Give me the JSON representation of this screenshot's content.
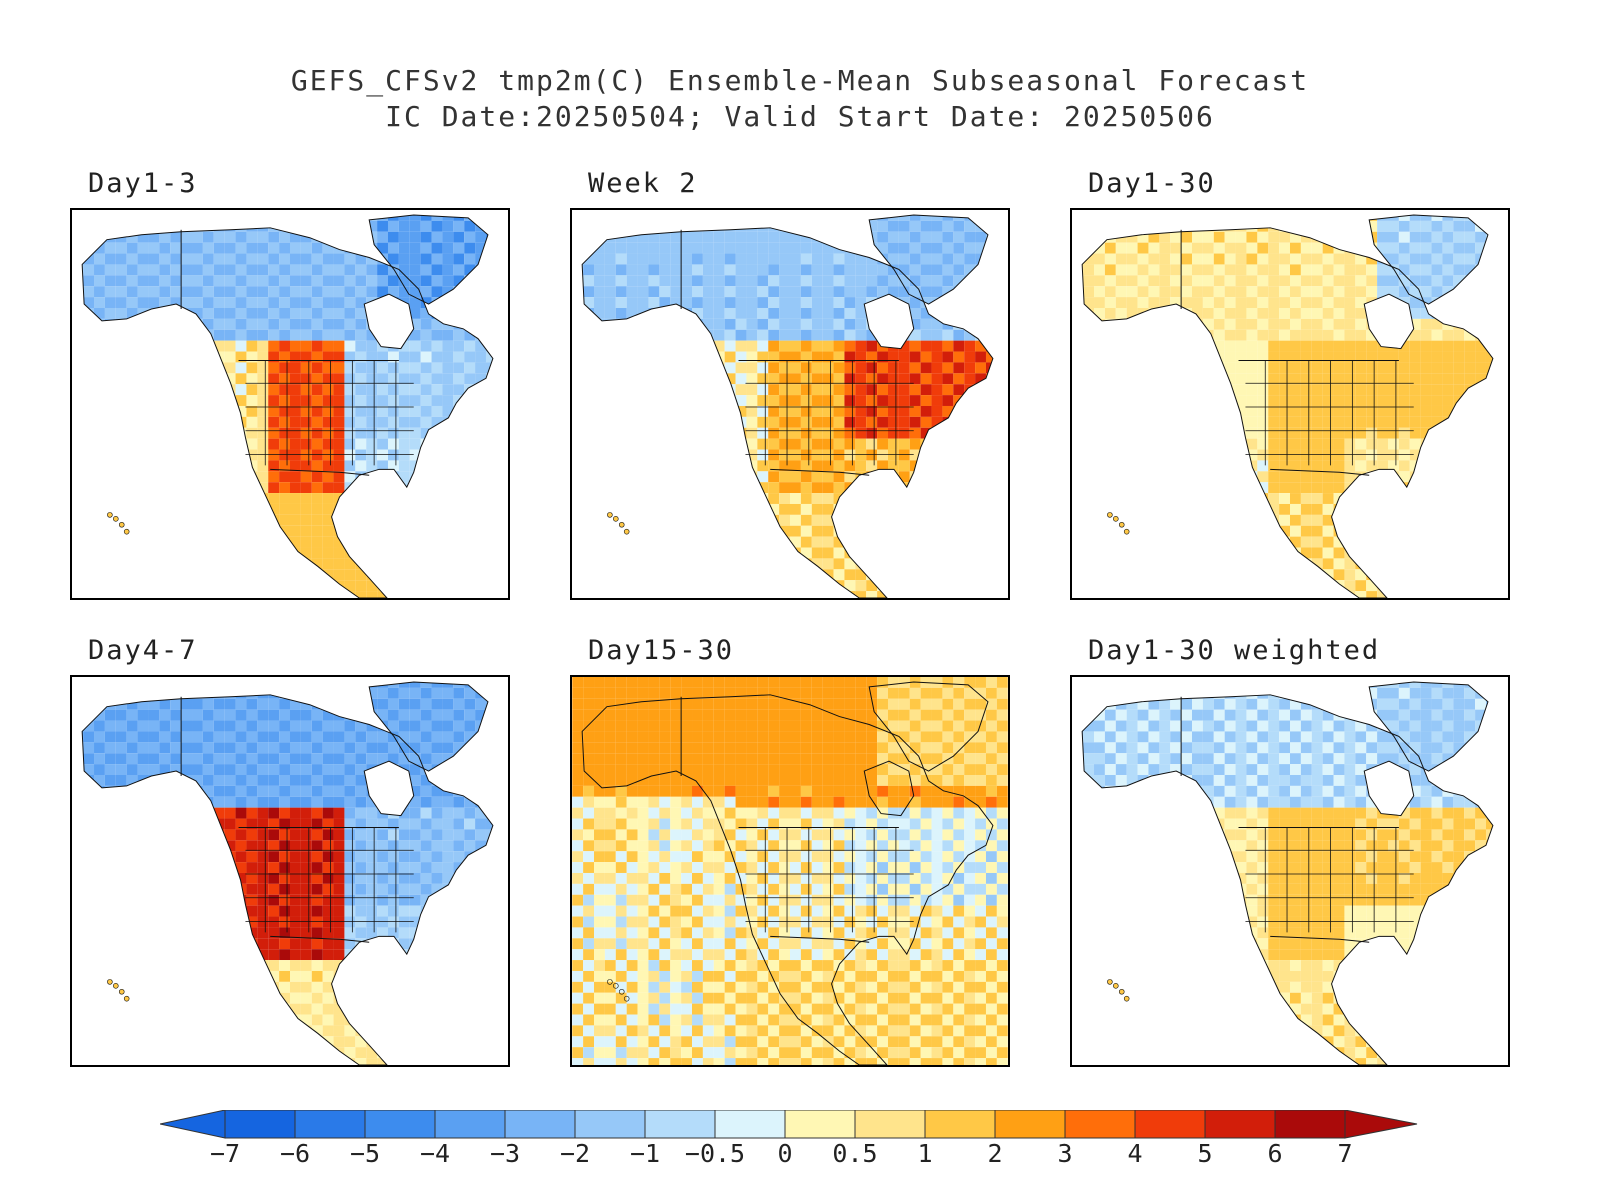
{
  "title": {
    "line1": "GEFS_CFSv2 tmp2m(C) Ensemble-Mean Subseasonal Forecast",
    "line2": "IC Date:20250504; Valid Start Date: 20250506"
  },
  "panels": [
    {
      "label": "Day1-3",
      "key": "d13"
    },
    {
      "label": "Week 2",
      "key": "w2"
    },
    {
      "label": "Day1-30",
      "key": "d130"
    },
    {
      "label": "Day4-7",
      "key": "d47"
    },
    {
      "label": "Day15-30",
      "key": "d1530"
    },
    {
      "label": "Day1-30 weighted",
      "key": "d130w"
    }
  ],
  "colorbar": {
    "ticks": [
      "-7",
      "-6",
      "-5",
      "-4",
      "-3",
      "-2",
      "-1",
      "-0.5",
      "0",
      "0.5",
      "1",
      "2",
      "3",
      "4",
      "5",
      "6",
      "7"
    ],
    "colors": [
      "#1565e0",
      "#2a7ae8",
      "#3d8cee",
      "#5aa0f2",
      "#78b4f6",
      "#96c8f8",
      "#b4dcfa",
      "#dcf4fc",
      "#fff7b4",
      "#ffe48c",
      "#ffc846",
      "#ffa014",
      "#ff6e0a",
      "#f03c0a",
      "#d21e0a",
      "#aa0a0a"
    ],
    "under_color": "#1565e0",
    "over_color": "#aa0a0a"
  },
  "fields": {
    "d13": {
      "north": -2.0,
      "west": 0.6,
      "plains": 4.2,
      "east": -1.2,
      "south": -0.7,
      "mexico": 1.4,
      "greenland": -3.5
    },
    "w2": {
      "north": -1.5,
      "west": 0.4,
      "plains": 2.0,
      "east": 4.5,
      "south": 1.6,
      "mexico": 1.0,
      "greenland": -2.0
    },
    "d130": {
      "north": 0.6,
      "west": 0.3,
      "plains": 1.6,
      "east": 1.2,
      "south": 0.6,
      "mexico": 0.8,
      "greenland": -1.0
    },
    "d47": {
      "north": -3.0,
      "west": 5.2,
      "plains": 5.5,
      "east": -1.8,
      "south": -1.2,
      "mexico": 0.6,
      "greenland": -3.0
    },
    "d1530": {
      "north": 2.5,
      "west": 0.5,
      "plains": 0.4,
      "east": -0.3,
      "south": 0.5,
      "mexico": 1.0,
      "greenland": 1.0
    },
    "d130w": {
      "north": -0.8,
      "west": 0.5,
      "plains": 1.6,
      "east": 1.1,
      "south": 0.3,
      "mexico": 0.7,
      "greenland": -1.2
    }
  }
}
